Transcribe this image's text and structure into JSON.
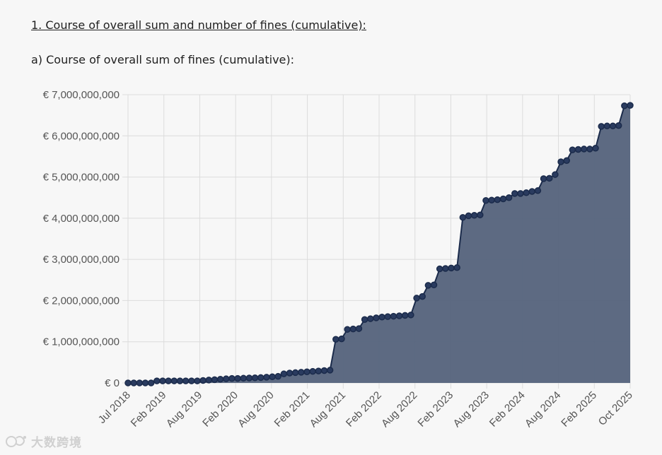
{
  "heading": "1. Course of overall sum and number of fines (cumulative):",
  "subheading": "a) Course of overall sum of fines (cumulative):",
  "watermark": {
    "text": "大数跨境"
  },
  "colors": {
    "fill": "#58657e",
    "line": "#1b2b4b",
    "point": "#2a3b5f",
    "grid": "#dcdcdc"
  },
  "chart_data": {
    "type": "area",
    "title": "Course of overall sum of fines (cumulative)",
    "xlabel": "",
    "ylabel": "",
    "ylim": [
      0,
      7000000000
    ],
    "y_ticks": [
      0,
      1000000000,
      2000000000,
      3000000000,
      4000000000,
      5000000000,
      6000000000,
      7000000000
    ],
    "y_tick_labels": [
      "€ 0",
      "€ 1,000,000,000",
      "€ 2,000,000,000",
      "€ 3,000,000,000",
      "€ 4,000,000,000",
      "€ 5,000,000,000",
      "€ 6,000,000,000",
      "€ 7,000,000,000"
    ],
    "x_tick_labels": [
      "Jul 2018",
      "Feb 2019",
      "Aug 2019",
      "Feb 2020",
      "Aug 2020",
      "Feb 2021",
      "Aug 2021",
      "Feb 2022",
      "Aug 2022",
      "Feb 2023",
      "Aug 2023",
      "Feb 2024",
      "Aug 2024",
      "Feb 2025",
      "Oct 2025"
    ],
    "series": [
      {
        "name": "Overall sum of fines (cumulative)",
        "values": [
          0,
          0,
          0,
          0,
          0,
          50000000,
          50000000,
          50000000,
          50000000,
          50000000,
          50000000,
          50000000,
          50000000,
          60000000,
          70000000,
          80000000,
          90000000,
          100000000,
          110000000,
          110000000,
          115000000,
          120000000,
          125000000,
          130000000,
          140000000,
          150000000,
          160000000,
          220000000,
          240000000,
          250000000,
          260000000,
          270000000,
          280000000,
          290000000,
          300000000,
          310000000,
          1060000000,
          1070000000,
          1300000000,
          1310000000,
          1320000000,
          1540000000,
          1560000000,
          1580000000,
          1600000000,
          1610000000,
          1620000000,
          1630000000,
          1640000000,
          1650000000,
          2060000000,
          2100000000,
          2370000000,
          2380000000,
          2770000000,
          2780000000,
          2790000000,
          2800000000,
          4020000000,
          4060000000,
          4070000000,
          4080000000,
          4430000000,
          4440000000,
          4450000000,
          4470000000,
          4500000000,
          4600000000,
          4600000000,
          4620000000,
          4650000000,
          4670000000,
          4960000000,
          4970000000,
          5060000000,
          5370000000,
          5400000000,
          5660000000,
          5670000000,
          5680000000,
          5680000000,
          5700000000,
          6230000000,
          6240000000,
          6240000000,
          6250000000,
          6730000000,
          6740000000
        ]
      }
    ]
  }
}
